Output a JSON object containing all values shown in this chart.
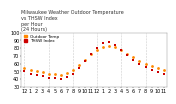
{
  "title": "Milwaukee Weather Outdoor Temperature\nvs THSW Index\nper Hour\n(24 Hours)",
  "xlabel": "",
  "ylabel": "",
  "background_color": "#ffffff",
  "grid_color": "#cccccc",
  "hours": [
    0,
    1,
    2,
    3,
    4,
    5,
    6,
    7,
    8,
    9,
    10,
    11,
    12,
    13,
    14,
    15,
    16,
    17,
    18,
    19,
    20,
    21,
    22,
    23
  ],
  "temp": [
    55,
    52,
    50,
    49,
    47,
    46,
    45,
    48,
    52,
    58,
    65,
    72,
    78,
    82,
    83,
    81,
    77,
    72,
    68,
    64,
    60,
    57,
    54,
    52
  ],
  "thsw": [
    50,
    47,
    45,
    44,
    42,
    41,
    40,
    43,
    47,
    54,
    63,
    72,
    80,
    86,
    88,
    84,
    78,
    71,
    65,
    60,
    56,
    52,
    49,
    47
  ],
  "temp_color": "#ff8800",
  "thsw_color": "#cc0000",
  "marker_size": 4,
  "ylim": [
    30,
    100
  ],
  "xlim": [
    -0.5,
    23.5
  ],
  "tick_fontsize": 3.5,
  "title_fontsize": 3.5,
  "legend_fontsize": 3.0,
  "grid_positions": [
    0,
    4,
    8,
    12,
    16,
    20
  ],
  "x_tick_labels": [
    "12",
    "1",
    "2",
    "3",
    "4",
    "5",
    "6",
    "7",
    "8",
    "9",
    "10",
    "11",
    "12",
    "1",
    "2",
    "3",
    "4",
    "5",
    "6",
    "7",
    "8",
    "9",
    "10",
    "11"
  ],
  "y_tick_positions": [
    30,
    40,
    50,
    60,
    70,
    80,
    90,
    100
  ],
  "y_tick_labels": [
    "30",
    "40",
    "50",
    "60",
    "70",
    "80",
    "90",
    "100"
  ]
}
